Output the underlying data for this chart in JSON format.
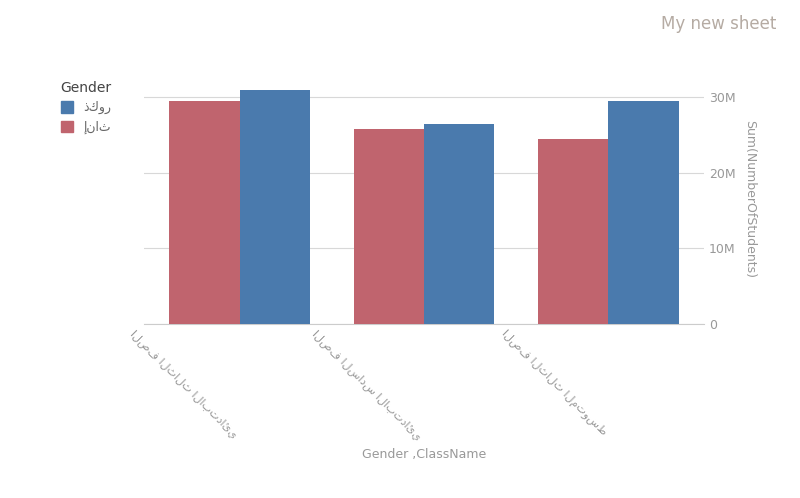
{
  "title": "My new sheet",
  "xlabel": "Gender ,ClassName",
  "ylabel": "Sum(NumberOfStudents)",
  "categories": [
    "الصف الثالث الابتدائي",
    "الصف السادس الابتدائي",
    "الصف الثالث المتوسط"
  ],
  "female_values": [
    29500000,
    25800000,
    24500000
  ],
  "male_values": [
    31000000,
    26500000,
    29500000
  ],
  "female_color": "#c0646e",
  "male_color": "#4a7aad",
  "background_color": "#ffffff",
  "grid_color": "#d8d8d8",
  "legend_title": "Gender",
  "legend_female": "إناث",
  "legend_male": "ذكور",
  "ylim": [
    0,
    33000000
  ],
  "yticks": [
    0,
    10000000,
    20000000,
    30000000
  ],
  "ytick_labels": [
    "0",
    "10M",
    "20M",
    "30M"
  ],
  "title_color": "#b5aba3",
  "axis_label_color": "#999999",
  "tick_color": "#999999",
  "bar_width": 0.38
}
